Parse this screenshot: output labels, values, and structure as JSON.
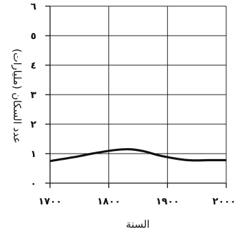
{
  "chart_data": {
    "type": "line",
    "xlabel": "السنة",
    "ylabel": "عدد السكان (مليارات)",
    "xlim": [
      1700,
      2000
    ],
    "ylim": [
      0,
      6
    ],
    "x_ticks": [
      1700,
      1800,
      1900,
      2000
    ],
    "x_tick_labels": [
      "١٧٠٠",
      "١٨٠٠",
      "١٩٠٠",
      "٢٠٠٠"
    ],
    "y_ticks": [
      0,
      1,
      2,
      3,
      4,
      5,
      6
    ],
    "y_tick_labels": [
      "٠",
      "١",
      "٢",
      "٣",
      "٤",
      "٥",
      "٦"
    ],
    "grid": true,
    "legend": "none",
    "series": [
      {
        "color": "#111111",
        "x": [
          1700,
          1740,
          1780,
          1810,
          1835,
          1860,
          1890,
          1935,
          1970,
          2000
        ],
        "y": [
          0.75,
          0.88,
          1.03,
          1.12,
          1.15,
          1.08,
          0.92,
          0.78,
          0.78,
          0.78
        ]
      }
    ]
  }
}
